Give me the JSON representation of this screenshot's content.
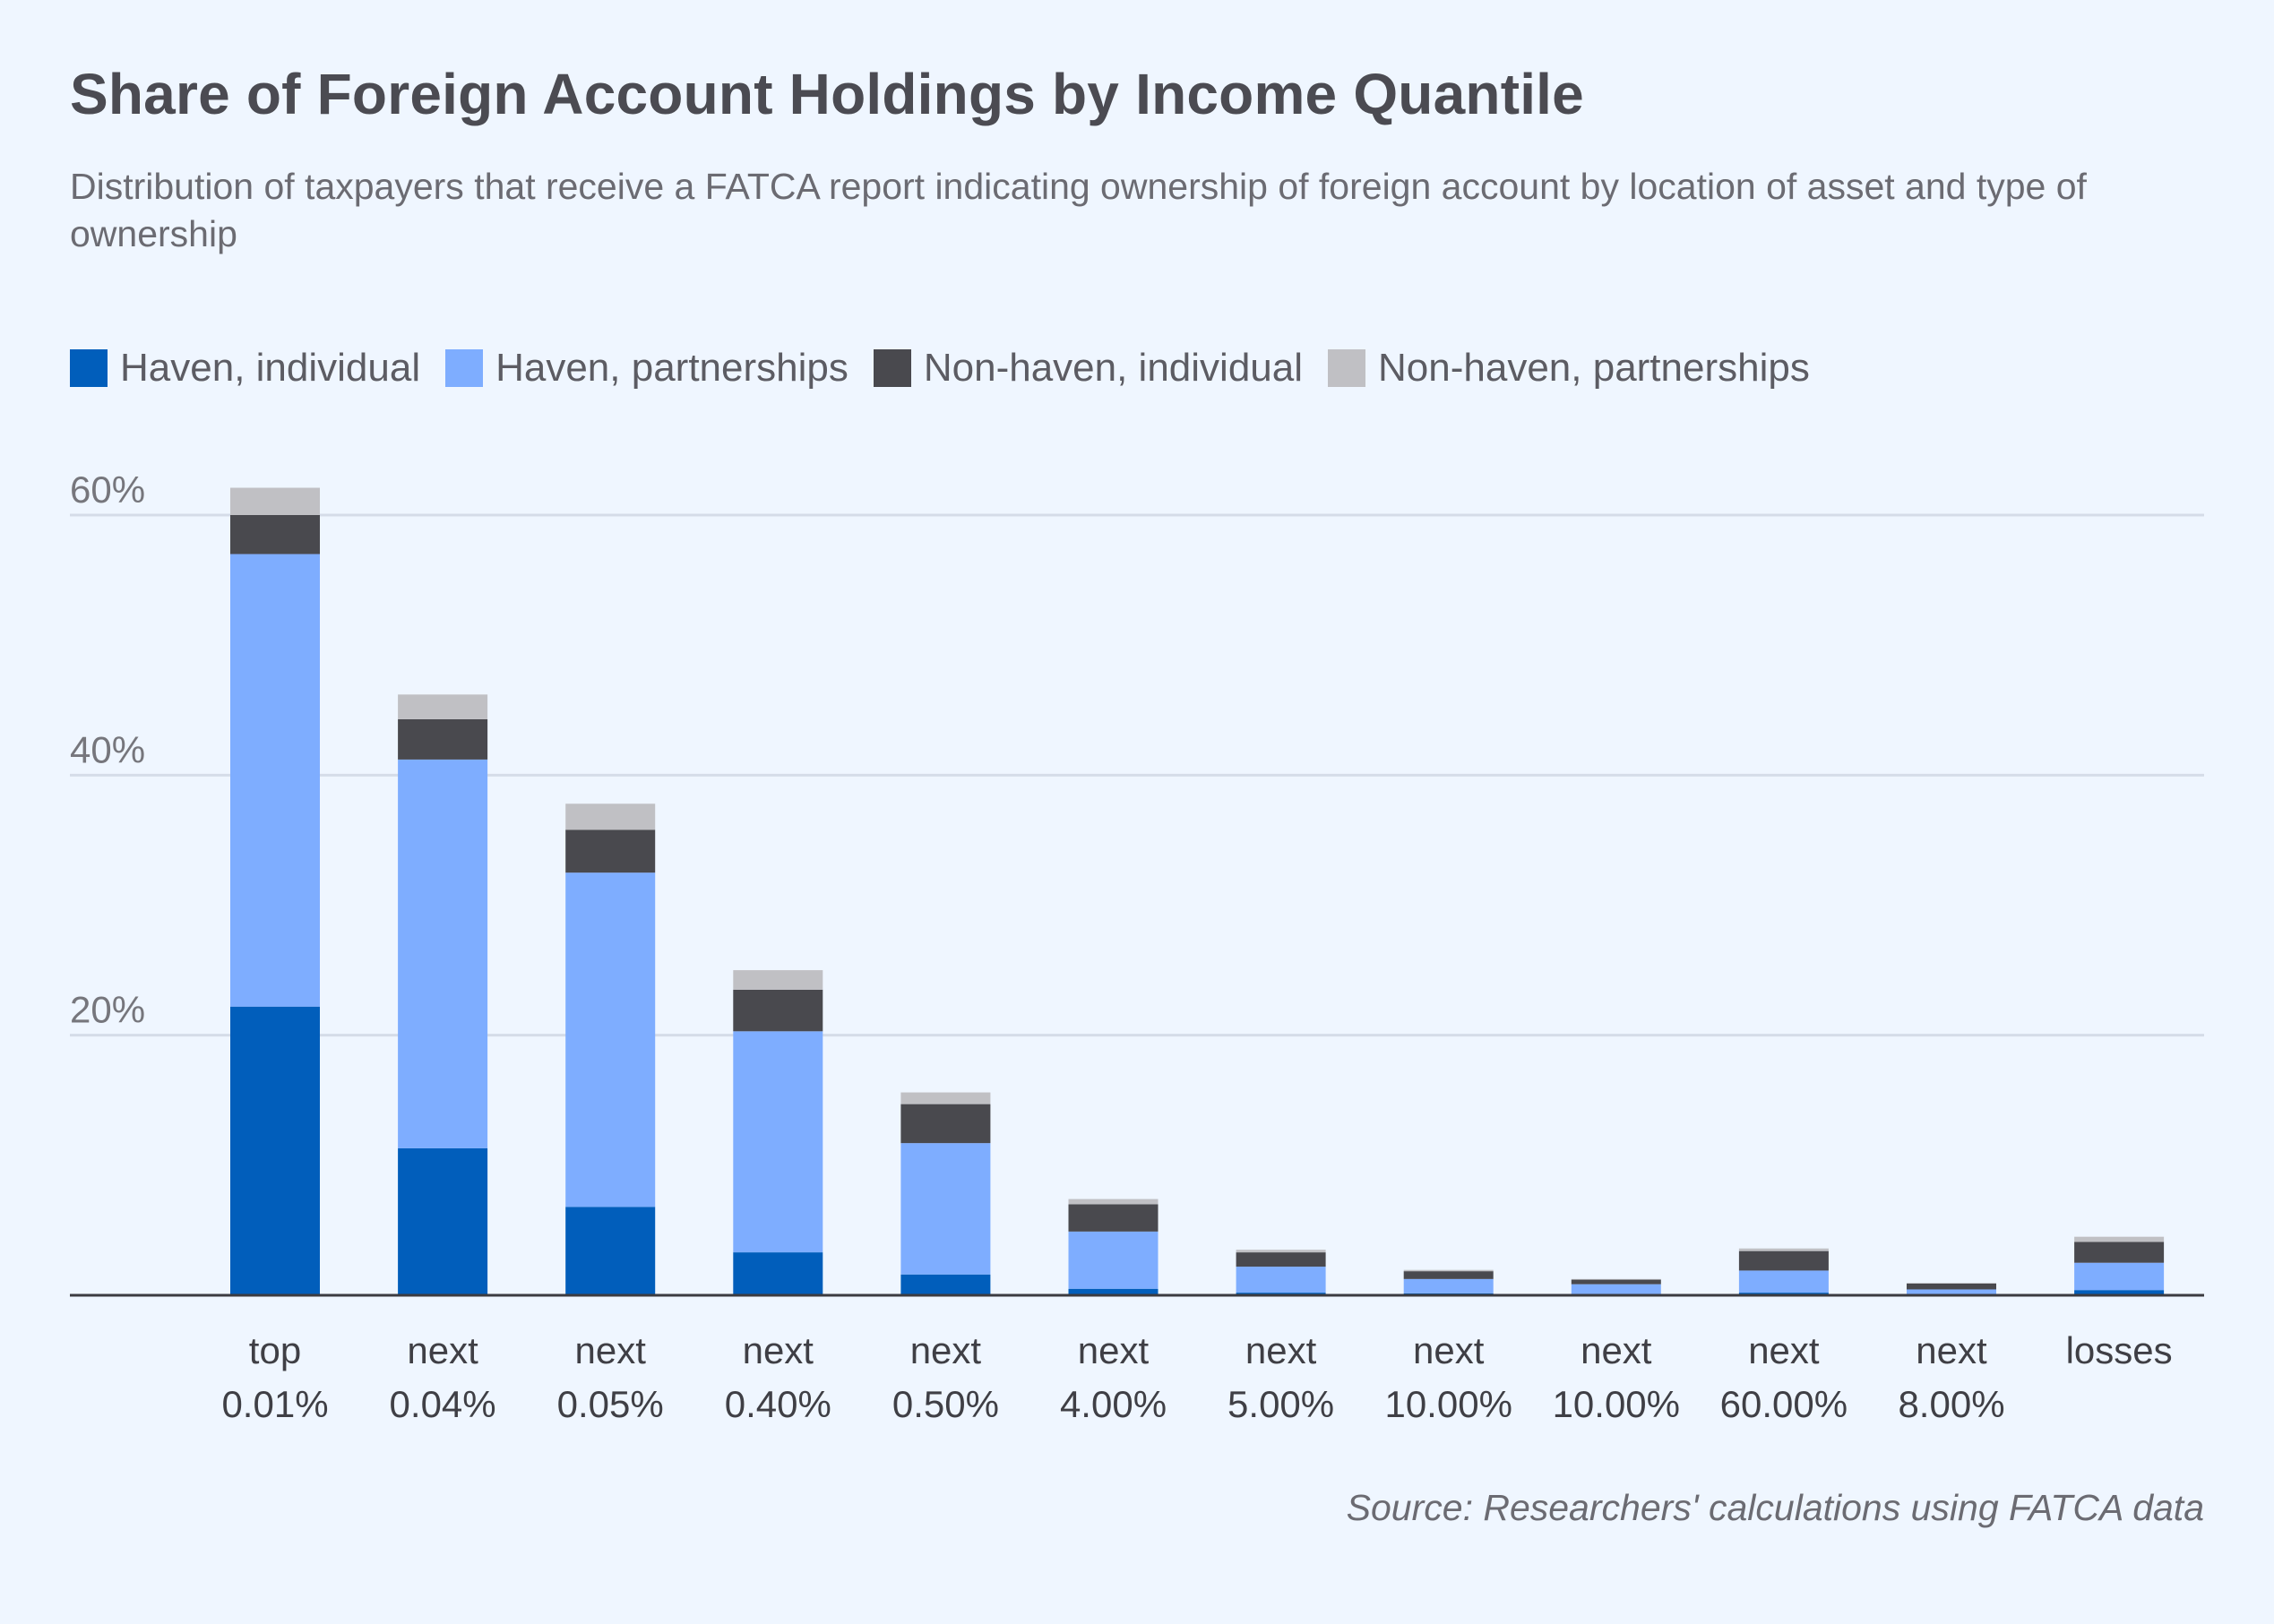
{
  "title": "Share of Foreign Account Holdings by Income Quantile",
  "subtitle": "Distribution of taxpayers that receive a FATCA report indicating ownership of foreign account by location of asset and type of ownership",
  "source": "Source: Researchers' calculations using FATCA data",
  "legend": [
    {
      "label": "Haven, individual",
      "color": "#015ebb"
    },
    {
      "label": "Haven, partnerships",
      "color": "#7eadff"
    },
    {
      "label": "Non-haven, individual",
      "color": "#49494e"
    },
    {
      "label": "Non-haven, partnerships",
      "color": "#c0c0c4"
    }
  ],
  "chart_data": {
    "type": "bar",
    "stacked": true,
    "categories": [
      [
        "top",
        "0.01%"
      ],
      [
        "next",
        "0.04%"
      ],
      [
        "next",
        "0.05%"
      ],
      [
        "next",
        "0.40%"
      ],
      [
        "next",
        "0.50%"
      ],
      [
        "next",
        "4.00%"
      ],
      [
        "next",
        "5.00%"
      ],
      [
        "next",
        "10.00%"
      ],
      [
        "next",
        "10.00%"
      ],
      [
        "next",
        "60.00%"
      ],
      [
        "next",
        "8.00%"
      ],
      [
        "losses"
      ]
    ],
    "series": [
      {
        "name": "Haven, individual",
        "color": "#015ebb",
        "values": [
          22.2,
          11.3,
          6.8,
          3.3,
          1.6,
          0.5,
          0.2,
          0.15,
          0.1,
          0.2,
          0.1,
          0.4
        ]
      },
      {
        "name": "Haven, partnerships",
        "color": "#7eadff",
        "values": [
          34.8,
          29.9,
          25.7,
          17.0,
          10.1,
          4.4,
          2.0,
          1.1,
          0.75,
          1.7,
          0.35,
          2.1
        ]
      },
      {
        "name": "Non-haven, individual",
        "color": "#49494e",
        "values": [
          3.0,
          3.1,
          3.3,
          3.2,
          3.0,
          2.1,
          1.1,
          0.6,
          0.35,
          1.5,
          0.45,
          1.6
        ]
      },
      {
        "name": "Non-haven, partnerships",
        "color": "#c0c0c4",
        "values": [
          2.1,
          1.9,
          2.0,
          1.5,
          0.9,
          0.4,
          0.2,
          0.1,
          0.05,
          0.2,
          0.05,
          0.4
        ]
      }
    ],
    "yticks": [
      20,
      40,
      60
    ],
    "ytick_labels": [
      "20%",
      "40%",
      "60%"
    ],
    "ylim": [
      0,
      62
    ],
    "grid": true,
    "legend_position": "top-left"
  }
}
